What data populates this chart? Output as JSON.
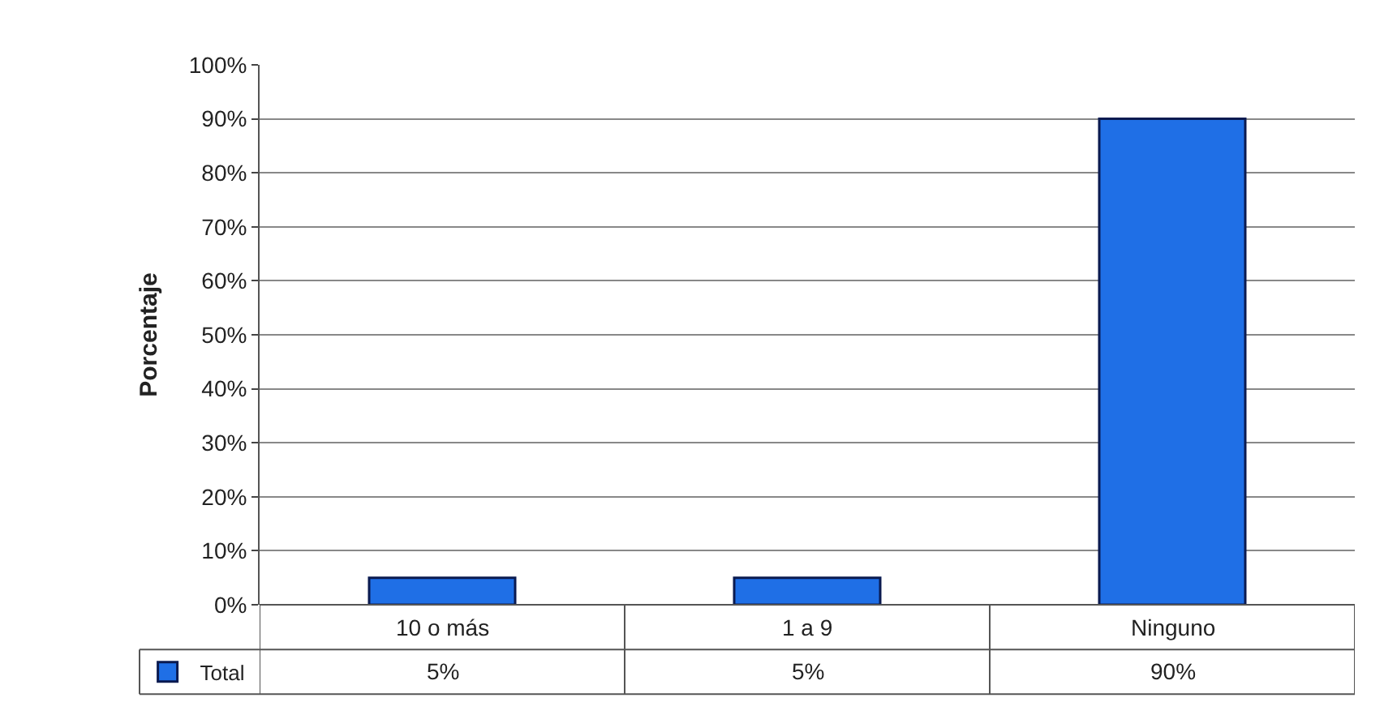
{
  "chart_data": {
    "type": "bar",
    "ylabel": "Porcentaje",
    "categories": [
      "10 o más",
      "1 a 9",
      "Ninguno"
    ],
    "series": [
      {
        "name": "Total",
        "color": "#1f6fe6",
        "values": [
          5,
          5,
          90
        ],
        "value_labels": [
          "5%",
          "5%",
          "90%"
        ]
      }
    ],
    "ylim": [
      0,
      100
    ],
    "yticks": [
      {
        "value": 0,
        "label": "0%"
      },
      {
        "value": 10,
        "label": "10%"
      },
      {
        "value": 20,
        "label": "20%"
      },
      {
        "value": 30,
        "label": "30%"
      },
      {
        "value": 40,
        "label": "40%"
      },
      {
        "value": 50,
        "label": "50%"
      },
      {
        "value": 60,
        "label": "60%"
      },
      {
        "value": 70,
        "label": "70%"
      },
      {
        "value": 80,
        "label": "80%"
      },
      {
        "value": 90,
        "label": "90%"
      },
      {
        "value": 100,
        "label": "100%"
      }
    ],
    "grid": "y",
    "legend": "bottom left"
  }
}
